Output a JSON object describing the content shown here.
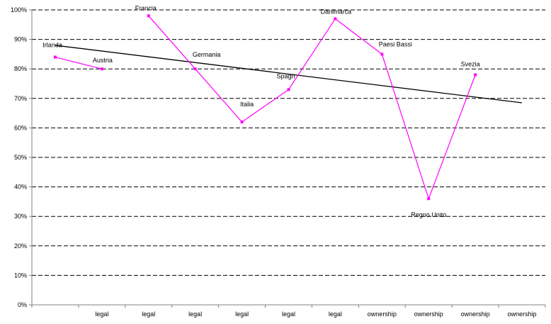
{
  "chart_data": {
    "type": "line",
    "categories": [
      "",
      "legal",
      "legal",
      "legal",
      "legal",
      "legal",
      "legal",
      "ownership",
      "ownership",
      "ownership",
      "ownership"
    ],
    "y_ticks": [
      "0%",
      "10%",
      "20%",
      "30%",
      "40%",
      "50%",
      "60%",
      "70%",
      "80%",
      "90%",
      "100%"
    ],
    "ylim": [
      0,
      100
    ],
    "y_unit": "%",
    "grid": "horizontal dashed",
    "legend": "none",
    "series": [
      {
        "color": "#ff00ff",
        "marker": "square",
        "points": [
          {
            "label": "Irlanda",
            "x": 0,
            "y": 84
          },
          {
            "label": "Austria",
            "x": 1,
            "y": 80
          },
          {
            "label": "Francia",
            "x": 2,
            "y": 98
          },
          {
            "label": "Germania",
            "x": 3,
            "y": 80
          },
          {
            "label": "Italia",
            "x": 4,
            "y": 62
          },
          {
            "label": "Spagn",
            "x": 5,
            "y": 73
          },
          {
            "label": "Danimarca",
            "x": 6,
            "y": 97
          },
          {
            "label": "Paesi Bassi",
            "x": 7,
            "y": 85
          },
          {
            "label": "Regno Unito",
            "x": 8,
            "y": 36
          },
          {
            "label": "Svezia",
            "x": 9,
            "y": 78
          }
        ],
        "segments": [
          [
            0,
            1
          ],
          [
            2,
            3,
            4,
            5,
            6,
            7,
            8,
            9
          ]
        ]
      }
    ],
    "trendline": {
      "type": "linear",
      "color": "#000000",
      "start": {
        "x": 0,
        "y": 88
      },
      "end": {
        "x": 10,
        "y": 68.5
      }
    },
    "colors": {
      "series": "#ff00ff",
      "trendline": "#000000",
      "gridline": "#000000",
      "axis": "#808080"
    }
  }
}
